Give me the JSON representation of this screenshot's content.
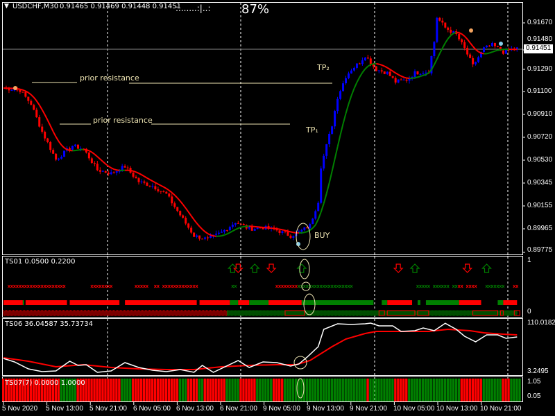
{
  "header": {
    "symbol": "USDCHF,M30",
    "ohlc": "0.91465 0.91469 0.91448 0.91451",
    "progress_dots": ":.......:|..:",
    "percent": "87%"
  },
  "colors": {
    "bull": "#0000ff",
    "bear": "#ff0000",
    "ma_up": "#008000",
    "ma_down": "#ff0000",
    "grid": "#ffffff",
    "annotation": "#f0e6b4"
  },
  "price_axis": {
    "ticks": [
      "0.91670",
      "0.91480",
      "0.91290",
      "0.91100",
      "0.90910",
      "0.90720",
      "0.90530",
      "0.90345",
      "0.90155",
      "0.89965",
      "0.89775"
    ],
    "current": "0.91451"
  },
  "annotations": {
    "resistance_1": "prior resistance",
    "resistance_2": "prior resistance",
    "tp2": "TP₂",
    "tp1": "TP₁",
    "buy": "BUY"
  },
  "price_path": [
    [
      0,
      0.91129
    ],
    [
      6,
      0.91111
    ],
    [
      10,
      0.90996
    ],
    [
      14,
      0.90766
    ],
    [
      19,
      0.90535
    ],
    [
      22,
      0.90593
    ],
    [
      25,
      0.9065
    ],
    [
      29,
      0.90622
    ],
    [
      34,
      0.90449
    ],
    [
      39,
      0.9042
    ],
    [
      44,
      0.90478
    ],
    [
      49,
      0.90351
    ],
    [
      54,
      0.90316
    ],
    [
      59,
      0.90247
    ],
    [
      64,
      0.90074
    ],
    [
      69,
      0.89902
    ],
    [
      74,
      0.89873
    ],
    [
      79,
      0.8993
    ],
    [
      84,
      0.90017
    ],
    [
      89,
      0.89959
    ],
    [
      94,
      0.89971
    ],
    [
      99,
      0.89948
    ],
    [
      104,
      0.89902
    ],
    [
      107,
      0.8993
    ],
    [
      111,
      0.89988
    ],
    [
      114,
      0.9019
    ],
    [
      115,
      0.90478
    ],
    [
      119,
      0.90823
    ],
    [
      121,
      0.91054
    ],
    [
      124,
      0.91226
    ],
    [
      126,
      0.91284
    ],
    [
      129,
      0.91342
    ],
    [
      131,
      0.91399
    ],
    [
      135,
      0.91284
    ],
    [
      139,
      0.91255
    ],
    [
      142,
      0.9118
    ],
    [
      146,
      0.91198
    ],
    [
      149,
      0.91255
    ],
    [
      154,
      0.91267
    ],
    [
      156,
      0.91514
    ],
    [
      157,
      0.91716
    ],
    [
      160,
      0.9163
    ],
    [
      164,
      0.91572
    ],
    [
      167,
      0.91457
    ],
    [
      170,
      0.91313
    ],
    [
      174,
      0.91457
    ],
    [
      177,
      0.91486
    ],
    [
      181,
      0.91428
    ],
    [
      185,
      0.91457
    ]
  ],
  "ts01": {
    "label": "TS01 0.0500 0.2200",
    "axis_top": "1",
    "axis_bottom": "0",
    "arrows": [
      [
        83,
        "up"
      ],
      [
        85,
        "down"
      ],
      [
        91,
        "up"
      ],
      [
        97,
        "down"
      ],
      [
        108,
        "up"
      ],
      [
        143,
        "down"
      ],
      [
        149,
        "up"
      ],
      [
        168,
        "down"
      ],
      [
        175,
        "up"
      ]
    ],
    "marks": [
      [
        2,
        6,
        "r"
      ],
      [
        7,
        22,
        "r"
      ],
      [
        32,
        39,
        "r"
      ],
      [
        48,
        52,
        "r"
      ],
      [
        55,
        56,
        "r"
      ],
      [
        58,
        70,
        "r"
      ],
      [
        83,
        84,
        "g"
      ],
      [
        99,
        107,
        "r"
      ],
      [
        107,
        126,
        "g"
      ],
      [
        150,
        154,
        "g"
      ],
      [
        156,
        161,
        "g"
      ],
      [
        163,
        164,
        "g"
      ],
      [
        165,
        166,
        "r"
      ],
      [
        168,
        171,
        "r"
      ],
      [
        175,
        181,
        "g"
      ],
      [
        185,
        186,
        "r"
      ]
    ],
    "bar": [
      [
        0,
        7,
        "r"
      ],
      [
        7,
        7.5,
        "g"
      ],
      [
        8,
        23,
        "r"
      ],
      [
        24,
        42,
        "r"
      ],
      [
        44,
        70,
        "r"
      ],
      [
        71,
        82,
        "r"
      ],
      [
        82,
        85,
        "g"
      ],
      [
        85,
        89,
        "r"
      ],
      [
        89,
        96,
        "g"
      ],
      [
        96,
        108,
        "r"
      ],
      [
        108,
        134,
        "g"
      ],
      [
        137,
        139,
        "g"
      ],
      [
        139,
        148,
        "r"
      ],
      [
        150,
        151,
        "g"
      ],
      [
        153,
        165,
        "g"
      ],
      [
        165,
        173,
        "r"
      ],
      [
        179,
        181,
        "g"
      ],
      [
        181,
        186,
        "r"
      ]
    ],
    "hatch": [
      [
        0,
        81,
        "r"
      ],
      [
        81,
        186,
        "g"
      ],
      [
        102,
        109,
        "r"
      ],
      [
        136,
        138,
        "r"
      ],
      [
        139,
        149,
        "r"
      ],
      [
        150,
        154,
        "r"
      ],
      [
        170,
        179,
        "r"
      ],
      [
        180,
        181,
        "r"
      ],
      [
        185,
        187,
        "r"
      ]
    ]
  },
  "ts06": {
    "label": "TS06 36.04587 35.73734",
    "axis_top": "110.01829",
    "axis_bottom": "3.2495",
    "range": [
      3.2495,
      110.01829
    ],
    "line_white": [
      [
        0,
        33.3
      ],
      [
        4,
        25.8
      ],
      [
        9,
        10.8
      ],
      [
        14,
        4.7
      ],
      [
        19,
        6.2
      ],
      [
        24,
        27.3
      ],
      [
        27,
        18.3
      ],
      [
        30,
        19.8
      ],
      [
        34,
        3.3
      ],
      [
        39,
        6.2
      ],
      [
        44,
        24.3
      ],
      [
        49,
        13.8
      ],
      [
        54,
        7.7
      ],
      [
        59,
        4.7
      ],
      [
        64,
        9.2
      ],
      [
        69,
        3.3
      ],
      [
        72,
        18.3
      ],
      [
        76,
        3.3
      ],
      [
        85,
        28.8
      ],
      [
        89,
        13.8
      ],
      [
        94,
        25.8
      ],
      [
        99,
        24.3
      ],
      [
        104,
        16.8
      ],
      [
        107,
        21.3
      ],
      [
        110,
        36.3
      ],
      [
        114,
        58.9
      ],
      [
        116,
        96.5
      ],
      [
        121,
        108.5
      ],
      [
        126,
        107.0
      ],
      [
        131,
        108.5
      ],
      [
        133,
        110.0
      ],
      [
        136,
        104.0
      ],
      [
        141,
        104.0
      ],
      [
        144,
        92.0
      ],
      [
        149,
        93.5
      ],
      [
        152,
        99.5
      ],
      [
        156,
        93.5
      ],
      [
        160,
        109.5
      ],
      [
        164,
        96.5
      ],
      [
        167,
        81.4
      ],
      [
        171,
        69.4
      ],
      [
        175,
        84.4
      ],
      [
        179,
        84.4
      ],
      [
        182,
        76.9
      ],
      [
        186,
        79.9
      ]
    ],
    "line_red": [
      [
        0,
        34.8
      ],
      [
        9,
        27.3
      ],
      [
        19,
        15.3
      ],
      [
        29,
        19.8
      ],
      [
        39,
        13.8
      ],
      [
        49,
        10.8
      ],
      [
        59,
        9.2
      ],
      [
        69,
        9.2
      ],
      [
        79,
        15.3
      ],
      [
        89,
        18.3
      ],
      [
        99,
        19.8
      ],
      [
        106,
        19.8
      ],
      [
        111,
        28.8
      ],
      [
        119,
        58.9
      ],
      [
        124,
        75.4
      ],
      [
        131,
        87.5
      ],
      [
        135,
        92.0
      ],
      [
        144,
        92.0
      ],
      [
        154,
        92.0
      ],
      [
        161,
        96.5
      ],
      [
        169,
        93.5
      ],
      [
        174,
        89.0
      ],
      [
        181,
        86.0
      ],
      [
        186,
        84.4
      ]
    ]
  },
  "ts07": {
    "label": "TS07(7) 0.0000 1.0000",
    "axis_top": "1.05",
    "axis_bottom": "0.05",
    "green": [
      [
        21,
        26
      ],
      [
        43,
        46
      ],
      [
        64,
        66
      ],
      [
        71,
        72
      ],
      [
        81,
        85
      ],
      [
        92,
        97
      ],
      [
        102,
        131
      ],
      [
        133,
        141
      ],
      [
        147,
        165
      ],
      [
        174,
        180
      ],
      [
        184,
        188
      ]
    ]
  },
  "time_axis": [
    "5 Nov 2020",
    "5 Nov 13:00",
    "5 Nov 21:00",
    "6 Nov 05:00",
    "6 Nov 13:00",
    "6 Nov 21:00",
    "9 Nov 05:00",
    "9 Nov 13:00",
    "9 Nov 21:00",
    "10 Nov 05:00",
    "10 Nov 13:00",
    "10 Nov 21:00"
  ]
}
